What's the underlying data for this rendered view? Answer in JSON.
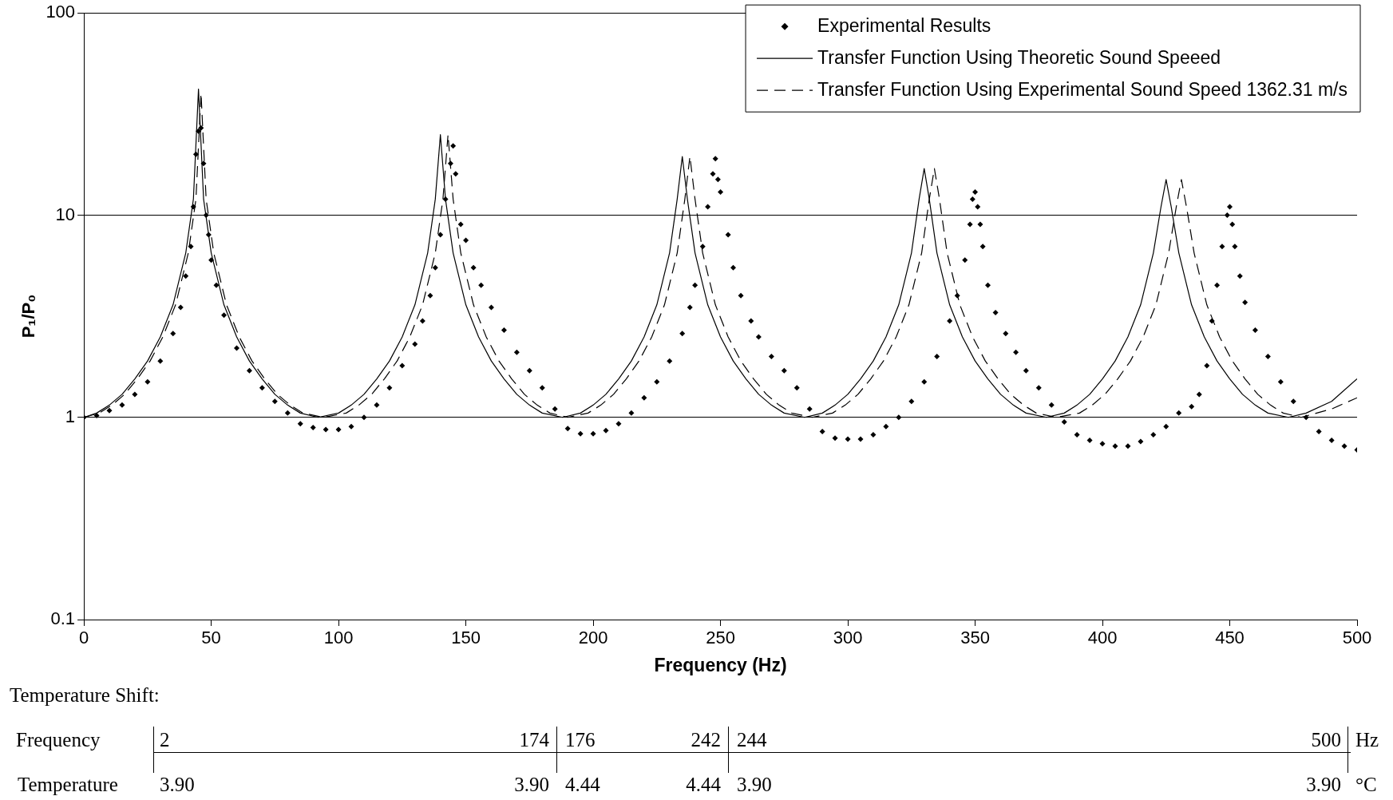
{
  "chart_data": {
    "type": "line",
    "xlabel": "Frequency (Hz)",
    "ylabel": "P₁/P₀",
    "xlim": [
      0,
      500
    ],
    "xticks": [
      0,
      50,
      100,
      150,
      200,
      250,
      300,
      350,
      400,
      450,
      500
    ],
    "ylim": [
      0.1,
      100
    ],
    "yticks": [
      0.1,
      1,
      10,
      100
    ],
    "log": "y",
    "grid": "y",
    "legend": "top right",
    "series": [
      {
        "name": "Experimental Results",
        "type": "scatter",
        "marker": "diamond",
        "color": "#000000",
        "x": [
          0,
          5,
          10,
          15,
          20,
          25,
          30,
          35,
          38,
          40,
          42,
          43,
          44,
          45,
          46,
          47,
          48,
          49,
          50,
          52,
          55,
          60,
          65,
          70,
          75,
          80,
          85,
          90,
          95,
          100,
          105,
          110,
          115,
          120,
          125,
          130,
          133,
          136,
          138,
          140,
          142,
          144,
          145,
          146,
          148,
          150,
          153,
          156,
          160,
          165,
          170,
          175,
          180,
          185,
          190,
          195,
          200,
          205,
          210,
          215,
          220,
          225,
          230,
          235,
          238,
          240,
          243,
          245,
          247,
          248,
          249,
          250,
          253,
          255,
          258,
          262,
          265,
          270,
          275,
          280,
          285,
          290,
          295,
          300,
          305,
          310,
          315,
          320,
          325,
          330,
          335,
          340,
          343,
          346,
          348,
          349,
          350,
          351,
          352,
          353,
          355,
          358,
          362,
          366,
          370,
          375,
          380,
          385,
          390,
          395,
          400,
          405,
          410,
          415,
          420,
          425,
          430,
          435,
          438,
          441,
          443,
          445,
          447,
          449,
          450,
          451,
          452,
          454,
          456,
          460,
          465,
          470,
          475,
          480,
          485,
          490,
          495,
          500
        ],
        "values": [
          1.0,
          1.02,
          1.08,
          1.15,
          1.3,
          1.5,
          1.9,
          2.6,
          3.5,
          5,
          7,
          11,
          20,
          26,
          27,
          18,
          10,
          8,
          6,
          4.5,
          3.2,
          2.2,
          1.7,
          1.4,
          1.2,
          1.05,
          0.93,
          0.89,
          0.87,
          0.87,
          0.9,
          1.0,
          1.15,
          1.4,
          1.8,
          2.3,
          3,
          4,
          5.5,
          8,
          12,
          18,
          22,
          16,
          9,
          7.5,
          5.5,
          4.5,
          3.5,
          2.7,
          2.1,
          1.7,
          1.4,
          1.1,
          0.88,
          0.83,
          0.83,
          0.86,
          0.93,
          1.05,
          1.25,
          1.5,
          1.9,
          2.6,
          3.5,
          4.5,
          7,
          11,
          16,
          19,
          15,
          13,
          8,
          5.5,
          4,
          3,
          2.5,
          2,
          1.7,
          1.4,
          1.1,
          0.85,
          0.79,
          0.78,
          0.78,
          0.82,
          0.9,
          1.0,
          1.2,
          1.5,
          2,
          3,
          4,
          6,
          9,
          12,
          13,
          11,
          9,
          7,
          4.5,
          3.3,
          2.6,
          2.1,
          1.7,
          1.4,
          1.15,
          0.95,
          0.82,
          0.77,
          0.74,
          0.72,
          0.72,
          0.76,
          0.82,
          0.9,
          1.05,
          1.13,
          1.3,
          1.8,
          3,
          4.5,
          7,
          10,
          11,
          9,
          7,
          5,
          3.7,
          2.7,
          2,
          1.5,
          1.2,
          1.0,
          0.85,
          0.77,
          0.72,
          0.69
        ]
      },
      {
        "name": "Transfer Function Using Theoretic Sound Speeed",
        "line_style": "solid",
        "color": "#000000",
        "x": [
          0,
          5,
          10,
          15,
          20,
          25,
          30,
          35,
          40,
          43,
          45,
          47,
          50,
          55,
          60,
          65,
          70,
          75,
          80,
          85,
          92,
          100,
          105,
          110,
          115,
          120,
          125,
          130,
          135,
          138,
          140,
          142,
          145,
          150,
          155,
          160,
          165,
          170,
          175,
          180,
          188,
          195,
          200,
          205,
          210,
          215,
          220,
          225,
          230,
          233,
          235,
          237,
          240,
          245,
          250,
          255,
          260,
          265,
          270,
          275,
          283,
          290,
          295,
          300,
          305,
          310,
          315,
          320,
          325,
          328,
          330,
          332,
          335,
          340,
          345,
          350,
          355,
          360,
          365,
          370,
          378,
          385,
          390,
          395,
          400,
          405,
          410,
          415,
          420,
          423,
          425,
          427,
          430,
          435,
          440,
          445,
          450,
          455,
          460,
          465,
          473,
          480,
          490,
          500
        ],
        "values": [
          1.0,
          1.05,
          1.15,
          1.3,
          1.55,
          1.9,
          2.5,
          3.6,
          6.5,
          12,
          42,
          12,
          6.5,
          3.6,
          2.5,
          1.9,
          1.55,
          1.3,
          1.15,
          1.05,
          1.0,
          1.05,
          1.15,
          1.3,
          1.55,
          1.9,
          2.5,
          3.6,
          6.5,
          12,
          25,
          12,
          6.5,
          3.6,
          2.5,
          1.9,
          1.55,
          1.3,
          1.15,
          1.05,
          1.0,
          1.05,
          1.15,
          1.3,
          1.55,
          1.9,
          2.5,
          3.6,
          6.5,
          12,
          19.5,
          12,
          6.5,
          3.6,
          2.5,
          1.9,
          1.55,
          1.3,
          1.15,
          1.05,
          1.0,
          1.05,
          1.15,
          1.3,
          1.55,
          1.9,
          2.5,
          3.6,
          6.5,
          12,
          17,
          12,
          6.5,
          3.6,
          2.5,
          1.9,
          1.55,
          1.3,
          1.15,
          1.05,
          1.0,
          1.05,
          1.15,
          1.3,
          1.55,
          1.9,
          2.5,
          3.6,
          6.5,
          11,
          15,
          11,
          6.5,
          3.6,
          2.5,
          1.9,
          1.55,
          1.3,
          1.15,
          1.05,
          1.0,
          1.05,
          1.2,
          1.55
        ]
      },
      {
        "name": "Transfer Function Using Experimental Sound Speed 1362.31 m/s",
        "line_style": "dashed",
        "color": "#000000",
        "x": [
          0,
          6,
          11,
          16,
          21,
          26,
          31,
          36,
          41,
          44,
          46,
          48,
          51,
          56,
          61,
          66,
          71,
          76,
          81,
          86,
          94,
          103,
          108,
          113,
          118,
          123,
          128,
          133,
          138,
          141,
          143,
          145,
          148,
          153,
          158,
          163,
          168,
          173,
          178,
          183,
          190,
          198,
          203,
          208,
          213,
          218,
          223,
          228,
          233,
          236,
          238,
          240,
          243,
          248,
          253,
          258,
          263,
          268,
          273,
          278,
          286,
          294,
          299,
          304,
          309,
          314,
          319,
          324,
          329,
          332,
          334,
          336,
          339,
          344,
          349,
          354,
          359,
          364,
          369,
          374,
          382,
          391,
          396,
          401,
          406,
          411,
          416,
          421,
          426,
          429,
          431,
          433,
          436,
          441,
          446,
          451,
          456,
          461,
          466,
          471,
          478,
          490,
          500
        ],
        "values": [
          1.0,
          1.05,
          1.15,
          1.3,
          1.55,
          1.9,
          2.5,
          3.6,
          6.5,
          12,
          40,
          12,
          6.5,
          3.6,
          2.5,
          1.9,
          1.55,
          1.3,
          1.15,
          1.05,
          1.0,
          1.05,
          1.15,
          1.3,
          1.55,
          1.9,
          2.5,
          3.6,
          6.5,
          12,
          25,
          12,
          6.5,
          3.6,
          2.5,
          1.9,
          1.55,
          1.3,
          1.15,
          1.05,
          1.0,
          1.05,
          1.15,
          1.3,
          1.55,
          1.9,
          2.5,
          3.6,
          6.5,
          12,
          19.5,
          12,
          6.5,
          3.6,
          2.5,
          1.9,
          1.55,
          1.3,
          1.15,
          1.05,
          1.0,
          1.05,
          1.15,
          1.3,
          1.55,
          1.9,
          2.5,
          3.6,
          6.5,
          12,
          17,
          12,
          6.5,
          3.6,
          2.5,
          1.9,
          1.55,
          1.3,
          1.15,
          1.05,
          1.0,
          1.05,
          1.15,
          1.3,
          1.55,
          1.9,
          2.5,
          3.6,
          6.5,
          11,
          15,
          11,
          6.5,
          3.6,
          2.5,
          1.9,
          1.55,
          1.3,
          1.15,
          1.05,
          1.0,
          1.1,
          1.25
        ]
      }
    ],
    "annotations": [
      "Temperature Shift:",
      "Frequency",
      "2",
      "174",
      "176",
      "242",
      "244",
      "500",
      "Hz",
      "Temperature",
      "3.90",
      "3.90",
      "4.44",
      "4.44",
      "3.90",
      "3.90",
      "°C"
    ]
  }
}
